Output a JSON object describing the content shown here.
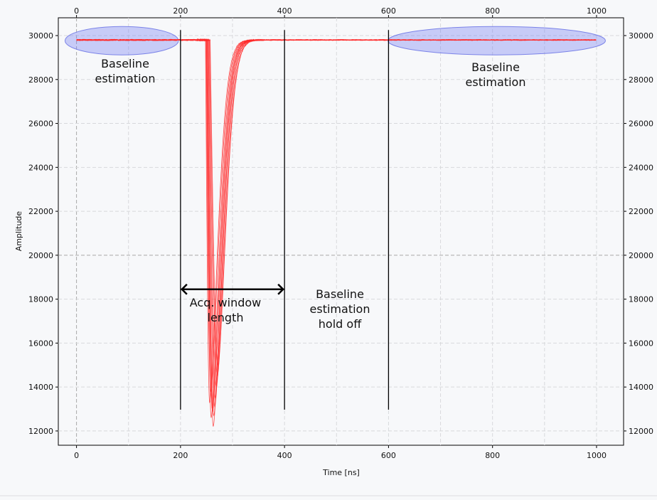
{
  "chart_data": {
    "type": "line",
    "title": "",
    "xlabel": "Time [ns]",
    "ylabel": "Amplitude",
    "xlim": [
      -35,
      1052
    ],
    "ylim": [
      11350,
      30810
    ],
    "x_ticks": [
      "0",
      "200",
      "400",
      "600",
      "800",
      "1000"
    ],
    "y_ticks": [
      "12000",
      "14000",
      "16000",
      "18000",
      "20000",
      "22000",
      "24000",
      "26000",
      "28000",
      "30000"
    ],
    "grid": true,
    "legend": "none",
    "series_color": "#ff2a2a",
    "baseline": 29800,
    "pulses": [
      {
        "onset": 248,
        "min_time": 256,
        "min": 13300
      },
      {
        "onset": 249,
        "min_time": 258,
        "min": 13800
      },
      {
        "onset": 250,
        "min_time": 259,
        "min": 12600
      },
      {
        "onset": 250,
        "min_time": 261,
        "min": 13000
      },
      {
        "onset": 251,
        "min_time": 262,
        "min": 12900
      },
      {
        "onset": 252,
        "min_time": 263,
        "min": 12200
      },
      {
        "onset": 252,
        "min_time": 264,
        "min": 12700
      },
      {
        "onset": 253,
        "min_time": 266,
        "min": 13100
      },
      {
        "onset": 254,
        "min_time": 267,
        "min": 13500
      },
      {
        "onset": 255,
        "min_time": 269,
        "min": 14000
      },
      {
        "onset": 256,
        "min_time": 271,
        "min": 14500
      },
      {
        "onset": 257,
        "min_time": 272,
        "min": 15000
      }
    ],
    "markers": [
      200,
      400,
      600
    ],
    "annotations": {
      "baseline_left": [
        "Baseline",
        "estimation"
      ],
      "baseline_right": [
        "Baseline",
        "estimation"
      ],
      "acq_window": [
        "Acq. window",
        "length"
      ],
      "holdoff": [
        "Baseline",
        "estimation",
        "hold off"
      ]
    },
    "regions": [
      {
        "name": "baseline-left",
        "x": [
          -22,
          196
        ]
      },
      {
        "name": "baseline-right",
        "x": [
          599,
          1017
        ]
      }
    ],
    "arrow": {
      "from": 200,
      "to": 400,
      "y": 18450
    }
  }
}
